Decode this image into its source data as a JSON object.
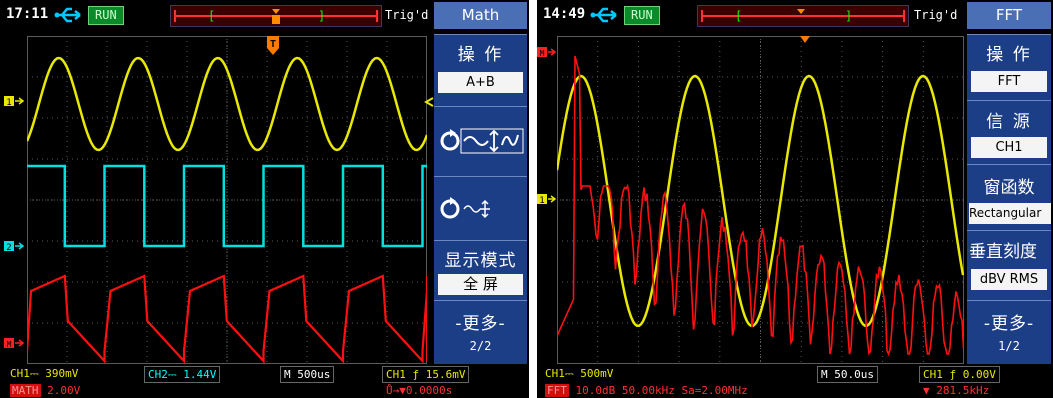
{
  "left": {
    "time": "17:11",
    "run": "RUN",
    "trig_state": "Trig'd",
    "menu_title": "Math",
    "menu": {
      "op_label": "操 作",
      "op_value": "A+B",
      "display_label": "显示模式",
      "display_value": "全 屏",
      "more_label": "-更多-",
      "page": "2/2"
    },
    "status": {
      "ch1": "CH1⎓ 390mV",
      "ch2": "CH2⎓ 1.44V",
      "timebase": "M 500us",
      "trig": "CH1 ƒ 15.6mV",
      "math_tag": "MATH",
      "math_scale": "2.00V",
      "trig_pos": "Ů→▼0.0000s"
    },
    "markers": {
      "t": "T",
      "ch1": "1",
      "ch2": "2",
      "math": "M"
    }
  },
  "right": {
    "time": "14:49",
    "run": "RUN",
    "trig_state": "Trig'd",
    "menu_title": "FFT",
    "menu": {
      "op_label": "操 作",
      "op_value": "FFT",
      "source_label": "信 源",
      "source_value": "CH1",
      "window_label": "窗函数",
      "window_value": "Rectangular",
      "vscale_label": "垂直刻度",
      "vscale_value": "dBV RMS",
      "more_label": "-更多-",
      "page": "1/2"
    },
    "status": {
      "ch1": "CH1⎓ 500mV",
      "timebase": "M 50.0us",
      "trig": "CH1 ƒ 0.00V",
      "fft_tag": "FFT",
      "fft_info": "10.0dB 50.00kHz Sa=2.00MHz",
      "freq": "▼ 281.5kHz"
    },
    "markers": {
      "ch1": "1",
      "math": "M"
    }
  },
  "colors": {
    "ch1": "#e8e800",
    "ch2": "#00e0e0",
    "math": "#ff1010",
    "menu_bg": "#1c3e86",
    "menu_title_bg": "#4a6fb5",
    "grid": "#5a5a5a"
  }
}
